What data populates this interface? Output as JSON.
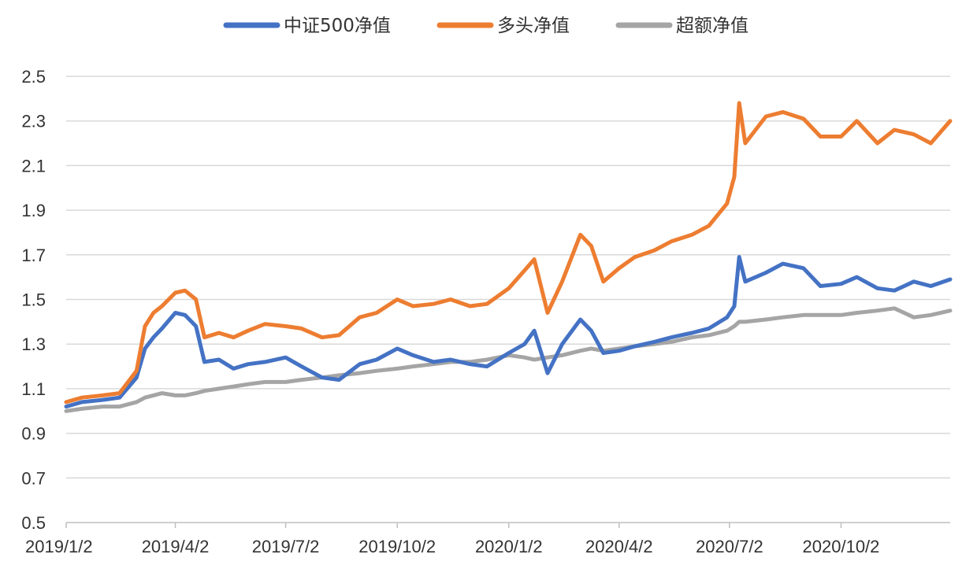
{
  "chart_data": {
    "type": "line",
    "title": "",
    "xlabel": "",
    "ylabel": "",
    "ylim": [
      0.5,
      2.5
    ],
    "yticks": [
      "2.5",
      "2.3",
      "2.1",
      "1.9",
      "1.7",
      "1.5",
      "1.3",
      "1.1",
      "0.9",
      "0.7",
      "0.5"
    ],
    "xticks": [
      "2019/1/2",
      "2019/4/2",
      "2019/7/2",
      "2019/10/2",
      "2020/1/2",
      "2020/4/2",
      "2020/7/2",
      "2020/10/2"
    ],
    "grid": true,
    "legend_position": "top",
    "colors": {
      "csi500": "#4472C4",
      "long": "#ED7D31",
      "excess": "#A5A5A5"
    },
    "x": [
      "2019/1/2",
      "2019/1/15",
      "2019/2/1",
      "2019/2/15",
      "2019/3/1",
      "2019/3/8",
      "2019/3/15",
      "2019/3/22",
      "2019/4/2",
      "2019/4/10",
      "2019/4/19",
      "2019/4/26",
      "2019/5/8",
      "2019/5/20",
      "2019/6/1",
      "2019/6/15",
      "2019/7/2",
      "2019/7/15",
      "2019/8/1",
      "2019/8/15",
      "2019/9/1",
      "2019/9/15",
      "2019/10/2",
      "2019/10/15",
      "2019/11/1",
      "2019/11/15",
      "2019/12/1",
      "2019/12/15",
      "2020/1/2",
      "2020/1/15",
      "2020/1/23",
      "2020/2/3",
      "2020/2/15",
      "2020/3/1",
      "2020/3/10",
      "2020/3/20",
      "2020/4/2",
      "2020/4/15",
      "2020/5/1",
      "2020/5/15",
      "2020/6/1",
      "2020/6/15",
      "2020/6/30",
      "2020/7/6",
      "2020/7/10",
      "2020/7/15",
      "2020/8/1",
      "2020/8/15",
      "2020/9/1",
      "2020/9/15",
      "2020/10/2",
      "2020/10/15",
      "2020/11/1",
      "2020/11/15",
      "2020/12/1",
      "2020/12/15",
      "2020/12/31"
    ],
    "series": [
      {
        "name": "中证500净值",
        "key": "csi500",
        "values": [
          1.02,
          1.04,
          1.05,
          1.06,
          1.15,
          1.28,
          1.33,
          1.37,
          1.44,
          1.43,
          1.38,
          1.22,
          1.23,
          1.19,
          1.21,
          1.22,
          1.24,
          1.2,
          1.15,
          1.14,
          1.21,
          1.23,
          1.28,
          1.25,
          1.22,
          1.23,
          1.21,
          1.2,
          1.26,
          1.3,
          1.36,
          1.17,
          1.3,
          1.41,
          1.36,
          1.26,
          1.27,
          1.29,
          1.31,
          1.33,
          1.35,
          1.37,
          1.42,
          1.47,
          1.69,
          1.58,
          1.62,
          1.66,
          1.64,
          1.56,
          1.57,
          1.6,
          1.55,
          1.54,
          1.58,
          1.56,
          1.59
        ]
      },
      {
        "name": "多头净值",
        "key": "long",
        "values": [
          1.04,
          1.06,
          1.07,
          1.08,
          1.18,
          1.38,
          1.44,
          1.47,
          1.53,
          1.54,
          1.5,
          1.33,
          1.35,
          1.33,
          1.36,
          1.39,
          1.38,
          1.37,
          1.33,
          1.34,
          1.42,
          1.44,
          1.5,
          1.47,
          1.48,
          1.5,
          1.47,
          1.48,
          1.55,
          1.63,
          1.68,
          1.44,
          1.58,
          1.79,
          1.74,
          1.58,
          1.64,
          1.69,
          1.72,
          1.76,
          1.79,
          1.83,
          1.93,
          2.05,
          2.38,
          2.2,
          2.32,
          2.34,
          2.31,
          2.23,
          2.23,
          2.3,
          2.2,
          2.26,
          2.24,
          2.2,
          2.3
        ]
      },
      {
        "name": "超额净值",
        "key": "excess",
        "values": [
          1.0,
          1.01,
          1.02,
          1.02,
          1.04,
          1.06,
          1.07,
          1.08,
          1.07,
          1.07,
          1.08,
          1.09,
          1.1,
          1.11,
          1.12,
          1.13,
          1.13,
          1.14,
          1.15,
          1.16,
          1.17,
          1.18,
          1.19,
          1.2,
          1.21,
          1.22,
          1.22,
          1.23,
          1.25,
          1.24,
          1.23,
          1.24,
          1.25,
          1.27,
          1.28,
          1.27,
          1.28,
          1.29,
          1.3,
          1.31,
          1.33,
          1.34,
          1.36,
          1.38,
          1.4,
          1.4,
          1.41,
          1.42,
          1.43,
          1.43,
          1.43,
          1.44,
          1.45,
          1.46,
          1.42,
          1.43,
          1.45
        ]
      }
    ]
  }
}
